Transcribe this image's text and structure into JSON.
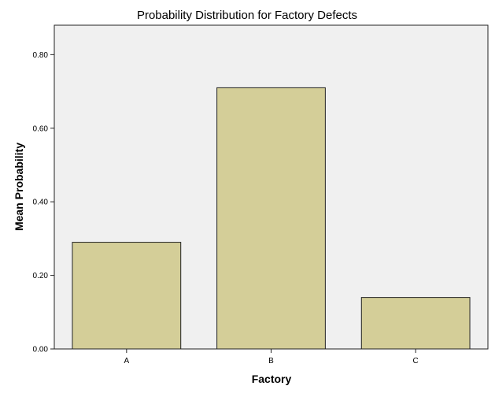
{
  "chart_data": {
    "type": "bar",
    "title": "Probability Distribution for Factory Defects",
    "xlabel": "Factory",
    "ylabel": "Mean Probability",
    "categories": [
      "A",
      "B",
      "C"
    ],
    "values": [
      0.29,
      0.71,
      0.14
    ],
    "yticks": [
      "0.00",
      "0.20",
      "0.40",
      "0.60",
      "0.80"
    ],
    "ylim": [
      0,
      0.88
    ],
    "grid": false,
    "legend": "none",
    "colors": {
      "bar_fill": "#d4ce98",
      "bar_stroke": "#222222",
      "plot_background": "#f0f0f0",
      "plot_border": "#222222"
    }
  }
}
